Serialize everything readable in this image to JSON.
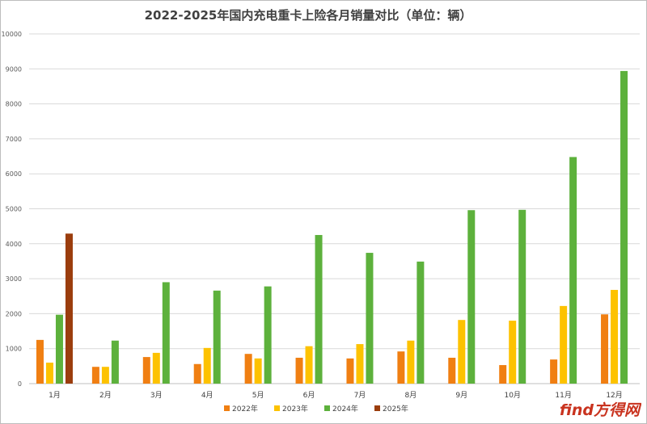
{
  "chart_data": {
    "type": "bar",
    "title": "2022-2025年国内充电重卡上险各月销量对比（单位：辆）",
    "xlabel": "",
    "ylabel": "",
    "categories": [
      "1月",
      "2月",
      "3月",
      "4月",
      "5月",
      "6月",
      "7月",
      "8月",
      "9月",
      "10月",
      "11月",
      "12月"
    ],
    "ylim": [
      0,
      10000
    ],
    "yticks": [
      0,
      1000,
      2000,
      3000,
      4000,
      5000,
      6000,
      7000,
      8000,
      9000,
      10000
    ],
    "grid": true,
    "legend_position": "bottom",
    "series": [
      {
        "name": "2022年",
        "color": "#f07f12",
        "values": [
          1250,
          480,
          760,
          560,
          850,
          740,
          720,
          920,
          740,
          530,
          690,
          1980
        ]
      },
      {
        "name": "2023年",
        "color": "#fdc200",
        "values": [
          600,
          480,
          880,
          1020,
          720,
          1070,
          1130,
          1230,
          1820,
          1800,
          2220,
          2680
        ]
      },
      {
        "name": "2024年",
        "color": "#5db13c",
        "values": [
          1970,
          1230,
          2900,
          2660,
          2780,
          4250,
          3740,
          3490,
          4960,
          4970,
          6480,
          8940
        ]
      },
      {
        "name": "2025年",
        "color": "#9b3d0d",
        "values": [
          4290,
          null,
          null,
          null,
          null,
          null,
          null,
          null,
          null,
          null,
          null,
          null
        ]
      }
    ]
  },
  "watermark": {
    "brand_text": "find方得网",
    "color": "#c9331f"
  }
}
